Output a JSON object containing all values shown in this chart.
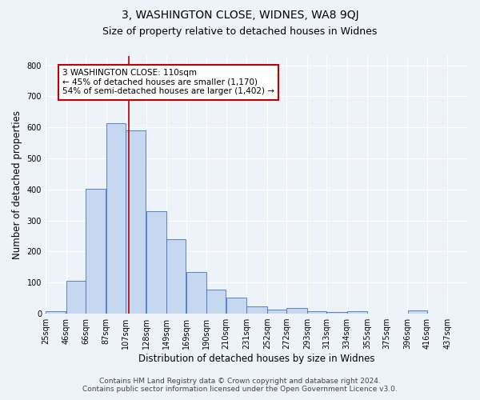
{
  "title": "3, WASHINGTON CLOSE, WIDNES, WA8 9QJ",
  "subtitle": "Size of property relative to detached houses in Widnes",
  "xlabel": "Distribution of detached houses by size in Widnes",
  "ylabel": "Number of detached properties",
  "footnote1": "Contains HM Land Registry data © Crown copyright and database right 2024.",
  "footnote2": "Contains public sector information licensed under the Open Government Licence v3.0.",
  "bin_labels": [
    "25sqm",
    "46sqm",
    "66sqm",
    "87sqm",
    "107sqm",
    "128sqm",
    "149sqm",
    "169sqm",
    "190sqm",
    "210sqm",
    "231sqm",
    "252sqm",
    "272sqm",
    "293sqm",
    "313sqm",
    "334sqm",
    "355sqm",
    "375sqm",
    "396sqm",
    "416sqm",
    "437sqm"
  ],
  "bar_values": [
    7,
    106,
    401,
    614,
    591,
    330,
    240,
    135,
    78,
    52,
    24,
    13,
    17,
    8,
    5,
    8,
    0,
    0,
    10,
    0,
    0
  ],
  "bar_color": "#c5d8f0",
  "bar_edge_color": "#4472c4",
  "vline_x": 110,
  "vline_color": "#c00000",
  "bin_edges": [
    25,
    46,
    66,
    87,
    107,
    128,
    149,
    169,
    190,
    210,
    231,
    252,
    272,
    293,
    313,
    334,
    355,
    375,
    396,
    416,
    437,
    458
  ],
  "annotation_text": "3 WASHINGTON CLOSE: 110sqm\n← 45% of detached houses are smaller (1,170)\n54% of semi-detached houses are larger (1,402) →",
  "annotation_box_color": "white",
  "annotation_box_edge_color": "#c00000",
  "ylim": [
    0,
    830
  ],
  "yticks": [
    0,
    100,
    200,
    300,
    400,
    500,
    600,
    700,
    800
  ],
  "bg_color": "#eef2f9",
  "grid_color": "white",
  "title_fontsize": 10,
  "subtitle_fontsize": 9,
  "label_fontsize": 8.5,
  "tick_fontsize": 7,
  "footnote_fontsize": 6.5,
  "annotation_fontsize": 7.5
}
